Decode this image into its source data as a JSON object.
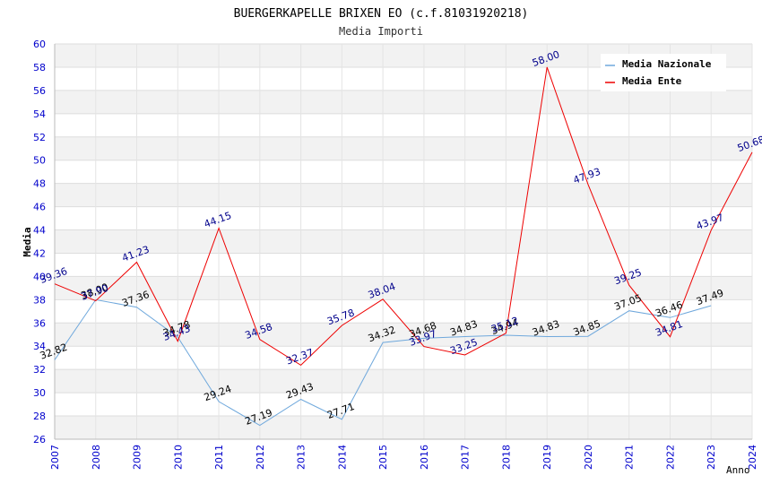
{
  "chart_data": {
    "type": "line",
    "title": "BUERGERKAPELLE BRIXEN EO (c.f.81031920218)",
    "subtitle": "Media Importi",
    "xlabel": "Anno",
    "ylabel": "Media",
    "ylim": [
      26,
      60
    ],
    "ytick_step": 2,
    "grid": true,
    "legend_position": "top-right",
    "x": [
      "2007",
      "2008",
      "2009",
      "2010",
      "2011",
      "2012",
      "2013",
      "2014",
      "2015",
      "2016",
      "2017",
      "2018",
      "2019",
      "2020",
      "2021",
      "2022",
      "2023",
      "2024"
    ],
    "series": [
      {
        "name": "Media Nazionale",
        "color": "#6fa8dc",
        "label_color": "#000000",
        "values": [
          32.82,
          38.0,
          37.36,
          34.78,
          29.24,
          27.19,
          29.43,
          27.71,
          34.32,
          34.68,
          34.83,
          34.94,
          34.83,
          34.85,
          37.05,
          36.46,
          37.49,
          null
        ]
      },
      {
        "name": "Media Ente",
        "color": "#ee0000",
        "label_color": "#00008b",
        "values": [
          39.36,
          37.9,
          41.23,
          34.43,
          44.15,
          34.58,
          32.37,
          35.78,
          38.04,
          33.97,
          33.25,
          35.12,
          58.0,
          47.93,
          39.25,
          34.81,
          43.97,
          50.68
        ]
      }
    ]
  }
}
